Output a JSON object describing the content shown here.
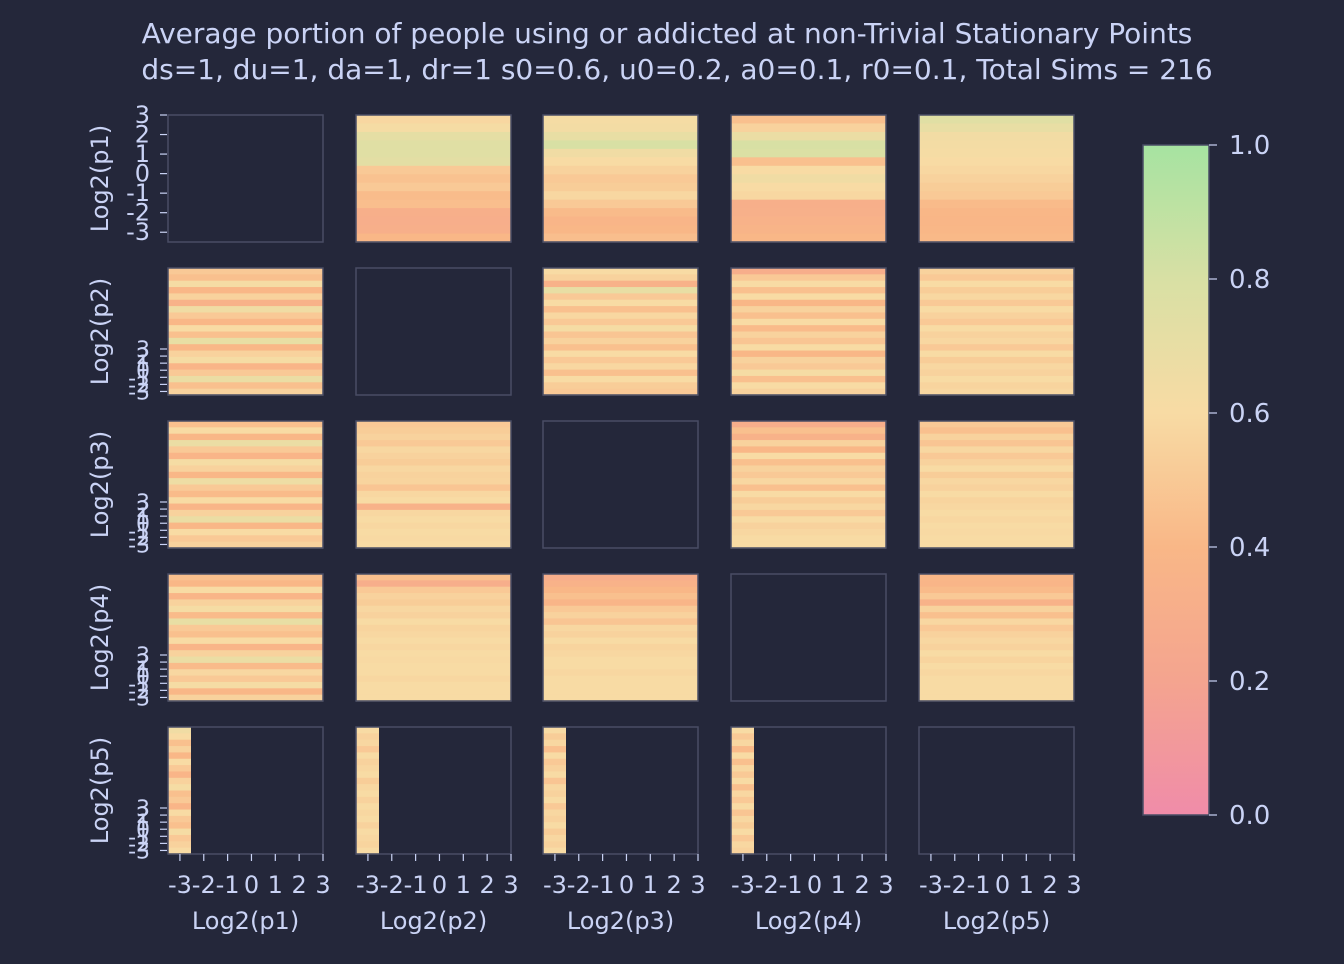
{
  "chart_data": {
    "type": "heatmap",
    "title": "Average portion of people using or addicted at non-Trivial Stationary Points",
    "subtitle": "ds=1, du=1, da=1, dr=1 s0=0.6, u0=0.2, a0=0.1, r0=0.1, Total Sims = 216",
    "grid": "5x5",
    "row_labels": [
      "Log2(p1)",
      "Log2(p2)",
      "Log2(p3)",
      "Log2(p4)",
      "Log2(p5)"
    ],
    "col_labels": [
      "Log2(p1)",
      "Log2(p2)",
      "Log2(p3)",
      "Log2(p4)",
      "Log2(p5)"
    ],
    "x_ticks": [
      "-3",
      "-2",
      "-1",
      "0",
      "1",
      "2",
      "3"
    ],
    "y_ticks": [
      "3",
      "2",
      "1",
      "0",
      "-1",
      "-2",
      "-3"
    ],
    "xlim": [
      -3.5,
      3
    ],
    "ylim": [
      -3.5,
      3
    ],
    "colorbar": {
      "min": 0.0,
      "max": 1.0,
      "ticks": [
        "0.0",
        "0.2",
        "0.4",
        "0.6",
        "0.8",
        "1.0"
      ],
      "colors": [
        "#f08ca9",
        "#f4a48f",
        "#f9b787",
        "#f8dba4",
        "#d8e0a4",
        "#a6e3a1"
      ]
    },
    "panels": [
      {
        "row": 0,
        "col": 0,
        "empty": true
      },
      {
        "row": 0,
        "col": 1,
        "bands": [
          0.58,
          0.62,
          0.72,
          0.75,
          0.75,
          0.73,
          0.5,
          0.46,
          0.5,
          0.43,
          0.44,
          0.32,
          0.3,
          0.32,
          0.4
        ]
      },
      {
        "row": 0,
        "col": 2,
        "bands": [
          0.62,
          0.63,
          0.7,
          0.8,
          0.65,
          0.6,
          0.55,
          0.5,
          0.52,
          0.58,
          0.5,
          0.42,
          0.38,
          0.4,
          0.44
        ]
      },
      {
        "row": 0,
        "col": 3,
        "bands": [
          0.45,
          0.55,
          0.68,
          0.8,
          0.78,
          0.45,
          0.6,
          0.65,
          0.6,
          0.58,
          0.32,
          0.33,
          0.35,
          0.37,
          0.4
        ]
      },
      {
        "row": 0,
        "col": 4,
        "bands": [
          0.75,
          0.7,
          0.64,
          0.63,
          0.62,
          0.6,
          0.58,
          0.55,
          0.52,
          0.5,
          0.42,
          0.4,
          0.39,
          0.4,
          0.41
        ]
      },
      {
        "row": 1,
        "col": 0,
        "bands": [
          0.5,
          0.45,
          0.62,
          0.4,
          0.55,
          0.35,
          0.65,
          0.5,
          0.4,
          0.6,
          0.45,
          0.7,
          0.4,
          0.55,
          0.62,
          0.38,
          0.5,
          0.68,
          0.45,
          0.55
        ]
      },
      {
        "row": 1,
        "col": 1,
        "empty": true
      },
      {
        "row": 1,
        "col": 2,
        "bands": [
          0.6,
          0.55,
          0.35,
          0.7,
          0.5,
          0.6,
          0.45,
          0.58,
          0.5,
          0.62,
          0.48,
          0.55,
          0.45,
          0.6,
          0.5,
          0.58,
          0.45,
          0.6,
          0.52,
          0.5
        ]
      },
      {
        "row": 1,
        "col": 3,
        "bands": [
          0.3,
          0.5,
          0.6,
          0.45,
          0.6,
          0.4,
          0.55,
          0.45,
          0.6,
          0.42,
          0.55,
          0.48,
          0.6,
          0.4,
          0.55,
          0.5,
          0.62,
          0.45,
          0.6,
          0.55
        ]
      },
      {
        "row": 1,
        "col": 4,
        "bands": [
          0.55,
          0.5,
          0.6,
          0.52,
          0.58,
          0.5,
          0.6,
          0.55,
          0.5,
          0.6,
          0.55,
          0.58,
          0.5,
          0.6,
          0.52,
          0.58,
          0.55,
          0.6,
          0.56,
          0.58
        ]
      },
      {
        "row": 2,
        "col": 0,
        "bands": [
          0.45,
          0.6,
          0.4,
          0.68,
          0.5,
          0.38,
          0.62,
          0.55,
          0.4,
          0.66,
          0.5,
          0.42,
          0.6,
          0.38,
          0.55,
          0.68,
          0.4,
          0.6,
          0.5,
          0.55
        ]
      },
      {
        "row": 2,
        "col": 1,
        "bands": [
          0.5,
          0.52,
          0.55,
          0.5,
          0.58,
          0.55,
          0.52,
          0.58,
          0.55,
          0.56,
          0.48,
          0.58,
          0.6,
          0.35,
          0.58,
          0.6,
          0.58,
          0.6,
          0.59,
          0.6
        ]
      },
      {
        "row": 2,
        "col": 2,
        "empty": true
      },
      {
        "row": 2,
        "col": 3,
        "bands": [
          0.3,
          0.45,
          0.35,
          0.55,
          0.4,
          0.6,
          0.45,
          0.55,
          0.5,
          0.58,
          0.45,
          0.6,
          0.52,
          0.58,
          0.5,
          0.6,
          0.55,
          0.58,
          0.6,
          0.6
        ]
      },
      {
        "row": 2,
        "col": 4,
        "bands": [
          0.5,
          0.45,
          0.55,
          0.48,
          0.58,
          0.5,
          0.55,
          0.6,
          0.52,
          0.58,
          0.55,
          0.6,
          0.56,
          0.58,
          0.6,
          0.58,
          0.6,
          0.59,
          0.6,
          0.6
        ]
      },
      {
        "row": 3,
        "col": 0,
        "bands": [
          0.45,
          0.4,
          0.6,
          0.38,
          0.55,
          0.62,
          0.42,
          0.7,
          0.5,
          0.45,
          0.6,
          0.38,
          0.55,
          0.68,
          0.42,
          0.58,
          0.5,
          0.62,
          0.4,
          0.55
        ]
      },
      {
        "row": 3,
        "col": 1,
        "bands": [
          0.45,
          0.3,
          0.5,
          0.55,
          0.52,
          0.58,
          0.55,
          0.6,
          0.56,
          0.58,
          0.6,
          0.58,
          0.6,
          0.59,
          0.6,
          0.6,
          0.58,
          0.6,
          0.6,
          0.6
        ]
      },
      {
        "row": 3,
        "col": 2,
        "bands": [
          0.3,
          0.35,
          0.4,
          0.45,
          0.38,
          0.5,
          0.55,
          0.48,
          0.58,
          0.55,
          0.6,
          0.56,
          0.58,
          0.6,
          0.6,
          0.58,
          0.6,
          0.6,
          0.6,
          0.6
        ]
      },
      {
        "row": 3,
        "col": 3,
        "empty": true
      },
      {
        "row": 3,
        "col": 4,
        "bands": [
          0.4,
          0.38,
          0.42,
          0.5,
          0.35,
          0.55,
          0.45,
          0.58,
          0.5,
          0.55,
          0.58,
          0.55,
          0.6,
          0.56,
          0.6,
          0.58,
          0.6,
          0.6,
          0.6,
          0.6
        ]
      },
      {
        "row": 4,
        "col": 0,
        "strip": true,
        "bands": [
          0.65,
          0.6,
          0.45,
          0.55,
          0.4,
          0.6,
          0.5,
          0.38,
          0.55,
          0.62,
          0.45,
          0.5,
          0.38,
          0.6,
          0.5,
          0.45,
          0.62,
          0.5,
          0.55,
          0.6
        ]
      },
      {
        "row": 4,
        "col": 1,
        "strip": true,
        "bands": [
          0.6,
          0.55,
          0.58,
          0.5,
          0.6,
          0.55,
          0.58,
          0.6,
          0.52,
          0.58,
          0.6,
          0.55,
          0.6,
          0.58,
          0.6,
          0.55,
          0.6,
          0.58,
          0.56,
          0.6
        ]
      },
      {
        "row": 4,
        "col": 2,
        "strip": true,
        "bands": [
          0.6,
          0.52,
          0.58,
          0.45,
          0.6,
          0.5,
          0.55,
          0.6,
          0.48,
          0.58,
          0.55,
          0.6,
          0.5,
          0.58,
          0.55,
          0.6,
          0.52,
          0.58,
          0.55,
          0.6
        ]
      },
      {
        "row": 4,
        "col": 3,
        "strip": true,
        "bands": [
          0.6,
          0.5,
          0.58,
          0.42,
          0.6,
          0.45,
          0.58,
          0.5,
          0.6,
          0.45,
          0.58,
          0.5,
          0.6,
          0.48,
          0.58,
          0.52,
          0.6,
          0.5,
          0.58,
          0.55
        ]
      },
      {
        "row": 4,
        "col": 4,
        "empty": true
      }
    ]
  }
}
